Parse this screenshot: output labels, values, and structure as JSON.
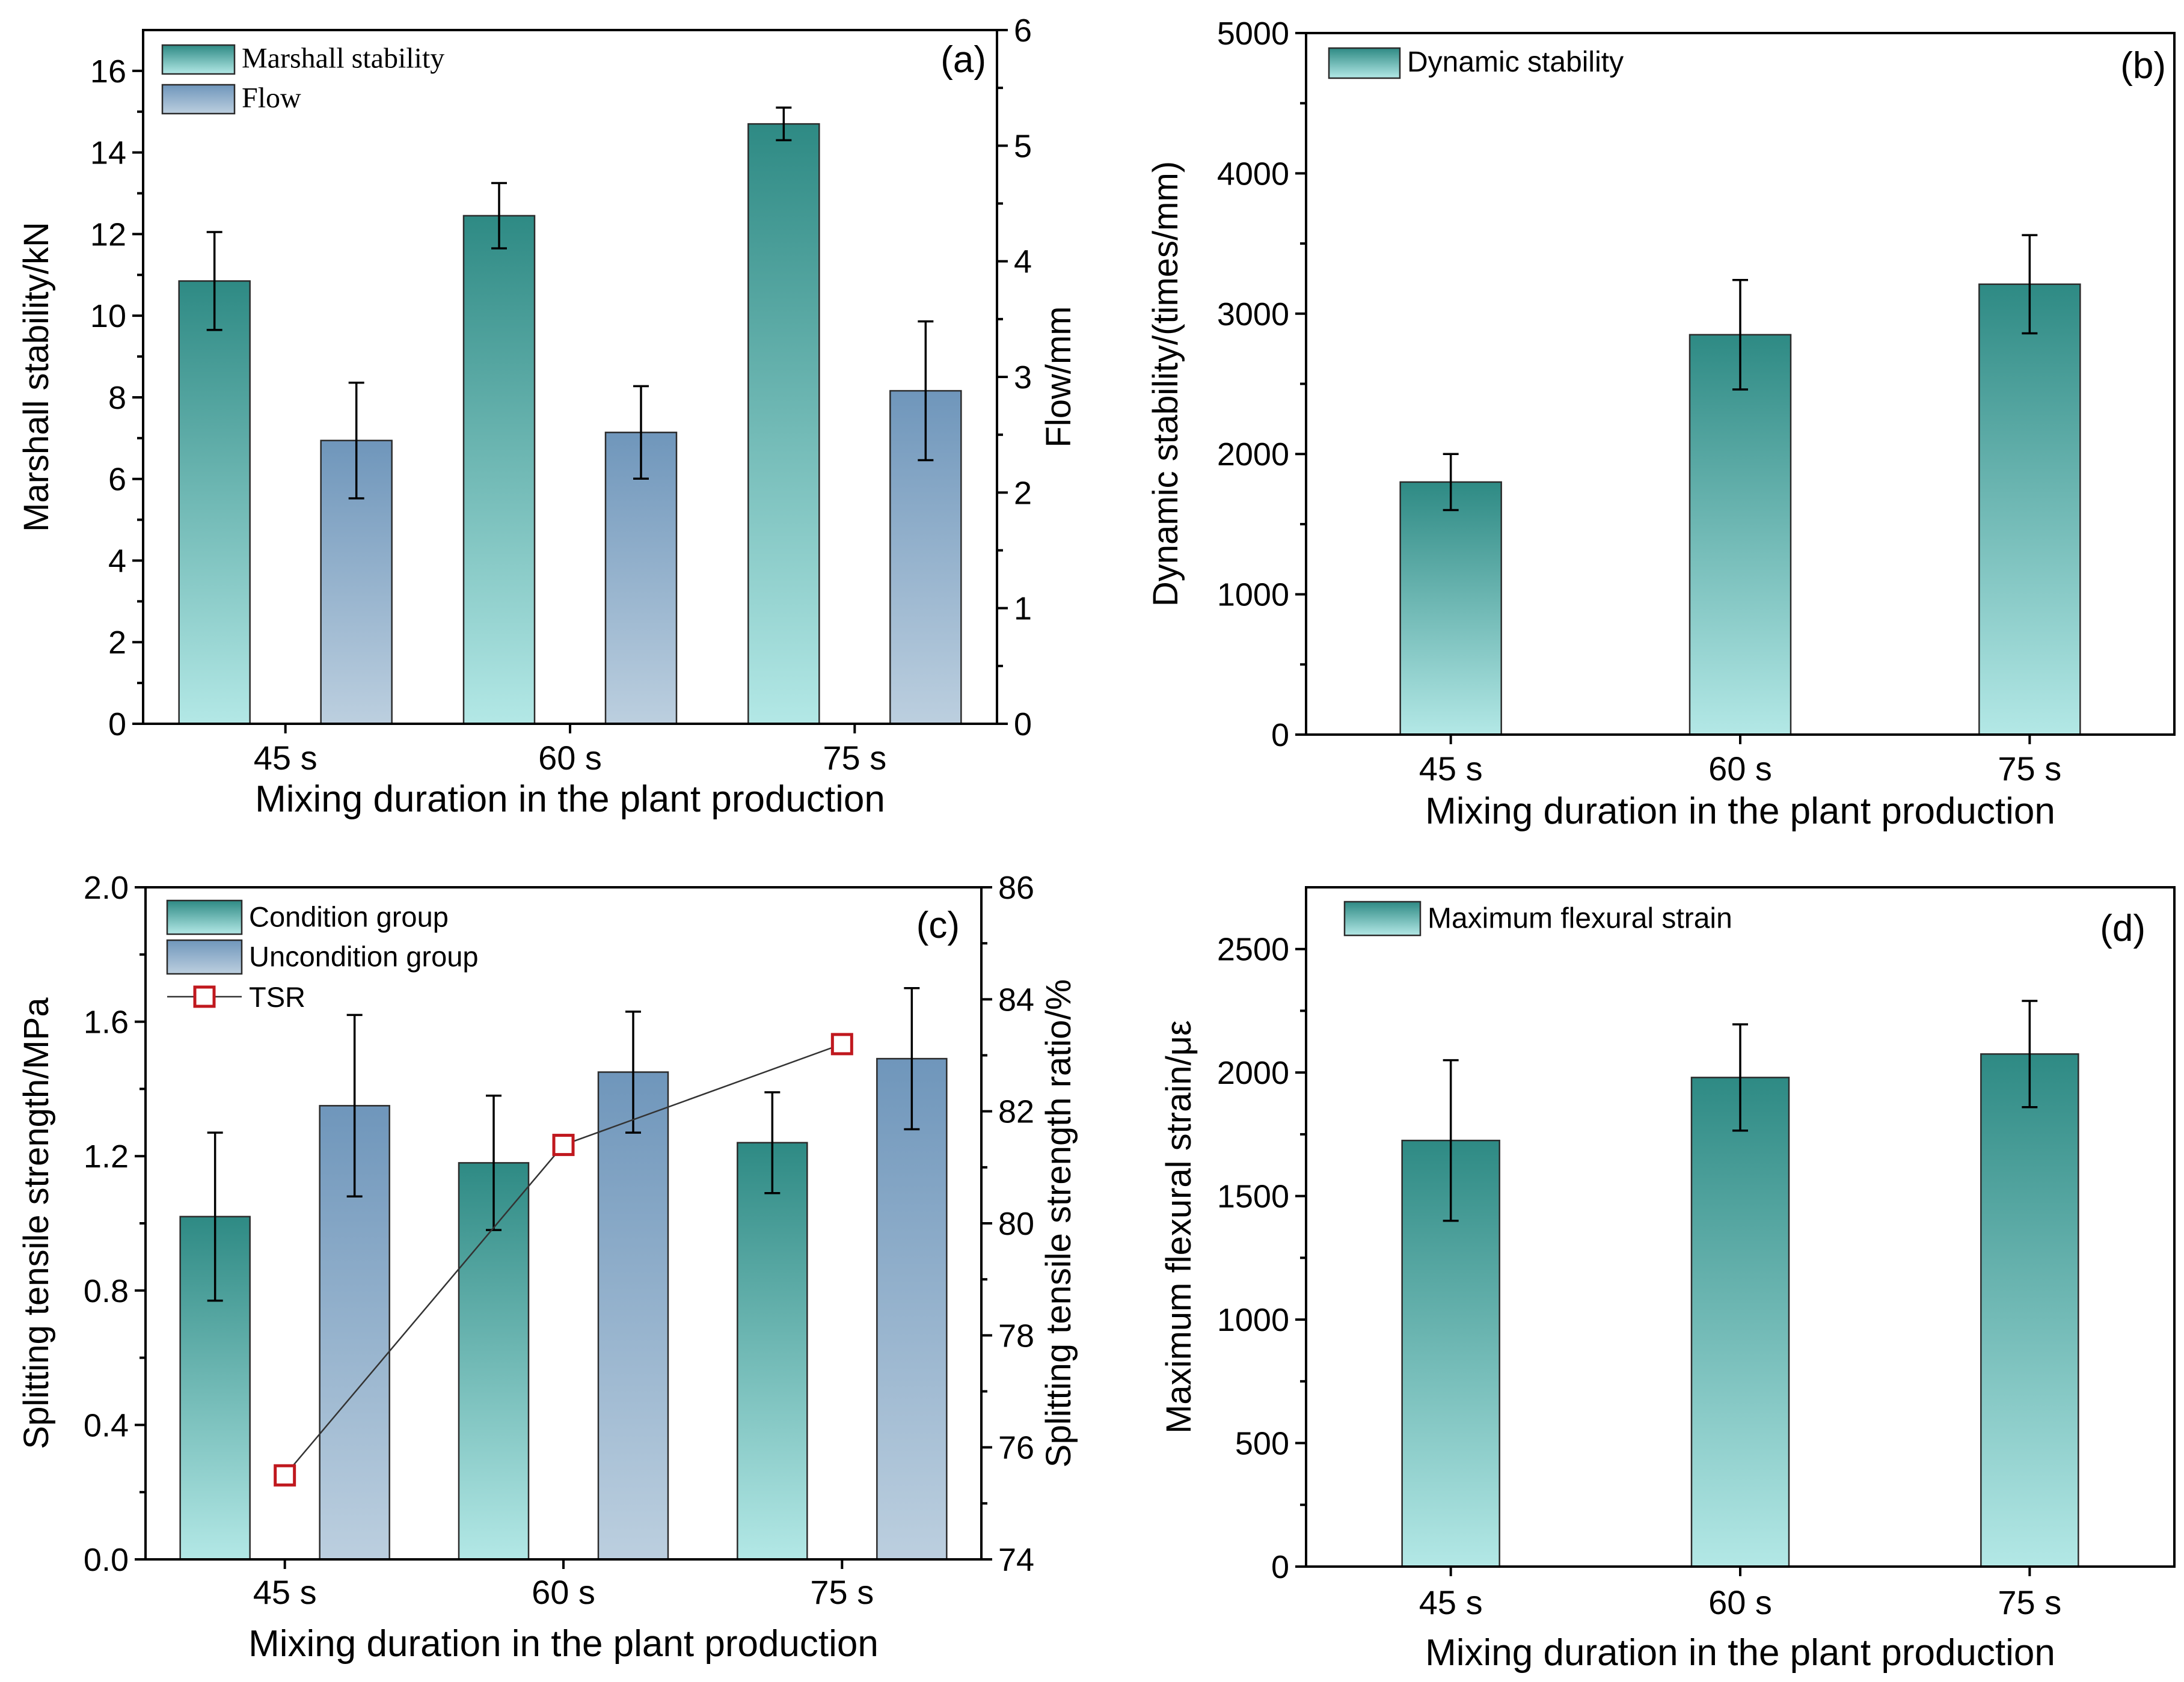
{
  "colors": {
    "green_top": "#2e8a84",
    "green_bottom": "#b3e8e6",
    "blue_top": "#6f96bb",
    "blue_bottom": "#bccfdf",
    "tsr_marker": "#c0181e",
    "tsr_line": "#333333"
  },
  "chart_data": [
    {
      "id": "a",
      "type": "bar",
      "panel_label": "(a)",
      "title": "",
      "xlabel": "Mixing duration in the plant production",
      "ylabel": "Marshall stability/kN",
      "y2label": "Flow/mm",
      "categories": [
        "45 s",
        "60 s",
        "75 s"
      ],
      "ylim": [
        0,
        17
      ],
      "yticks": [
        "0",
        "2",
        "4",
        "6",
        "8",
        "10",
        "12",
        "14",
        "16"
      ],
      "y2lim": [
        0,
        6
      ],
      "y2ticks": [
        "0",
        "1",
        "2",
        "3",
        "4",
        "5",
        "6"
      ],
      "legend_position": "top-left",
      "series": [
        {
          "name": "Marshall stability",
          "axis": "left",
          "color": "green",
          "values": [
            10.85,
            12.45,
            14.7
          ],
          "errors": [
            1.2,
            0.8,
            0.4
          ]
        },
        {
          "name": "Flow",
          "axis": "right",
          "color": "blue",
          "values": [
            2.45,
            2.52,
            2.88
          ],
          "errors": [
            0.5,
            0.4,
            0.6
          ]
        }
      ]
    },
    {
      "id": "b",
      "type": "bar",
      "panel_label": "(b)",
      "title": "",
      "xlabel": "Mixing duration in the plant production",
      "ylabel": "Dynamic stability/(times/mm)",
      "categories": [
        "45 s",
        "60 s",
        "75 s"
      ],
      "ylim": [
        0,
        5000
      ],
      "yticks": [
        "0",
        "1000",
        "2000",
        "3000",
        "4000",
        "5000"
      ],
      "legend_position": "top-left",
      "series": [
        {
          "name": "Dynamic stability",
          "axis": "left",
          "color": "green",
          "values": [
            1800,
            2850,
            3210
          ],
          "errors": [
            200,
            390,
            350
          ]
        }
      ]
    },
    {
      "id": "c",
      "type": "bar",
      "panel_label": "(c)",
      "title": "",
      "xlabel": "Mixing duration in the plant production",
      "ylabel": "Splitting tensile strength/MPa",
      "y2label": "Splitting tensile strength ratio/%",
      "categories": [
        "45 s",
        "60 s",
        "75 s"
      ],
      "ylim": [
        0,
        2.0
      ],
      "yticks": [
        "0.0",
        "0.4",
        "0.8",
        "1.2",
        "1.6",
        "2.0"
      ],
      "y2lim": [
        74,
        86
      ],
      "y2ticks": [
        "74",
        "76",
        "78",
        "80",
        "82",
        "84",
        "86"
      ],
      "legend_position": "top-left",
      "series": [
        {
          "name": "Condition group",
          "axis": "left",
          "color": "green",
          "values": [
            1.02,
            1.18,
            1.24
          ],
          "errors": [
            0.25,
            0.2,
            0.15
          ]
        },
        {
          "name": "Uncondition group",
          "axis": "left",
          "color": "blue",
          "values": [
            1.35,
            1.45,
            1.49
          ],
          "errors": [
            0.27,
            0.18,
            0.21
          ]
        }
      ],
      "line_series": {
        "name": "TSR",
        "axis": "right",
        "values": [
          75.5,
          81.4,
          83.2
        ]
      }
    },
    {
      "id": "d",
      "type": "bar",
      "panel_label": "(d)",
      "title": "",
      "xlabel": "Mixing duration in the plant production",
      "ylabel": "Maximum flexural strain/με",
      "categories": [
        "45 s",
        "60 s",
        "75 s"
      ],
      "ylim": [
        0,
        2750
      ],
      "yticks": [
        "0",
        "500",
        "1000",
        "1500",
        "2000",
        "2500"
      ],
      "legend_position": "top-left",
      "series": [
        {
          "name": "Maximum flexural strain",
          "axis": "left",
          "color": "green",
          "values": [
            1725,
            1980,
            2075
          ],
          "errors": [
            325,
            215,
            215
          ]
        }
      ]
    }
  ]
}
